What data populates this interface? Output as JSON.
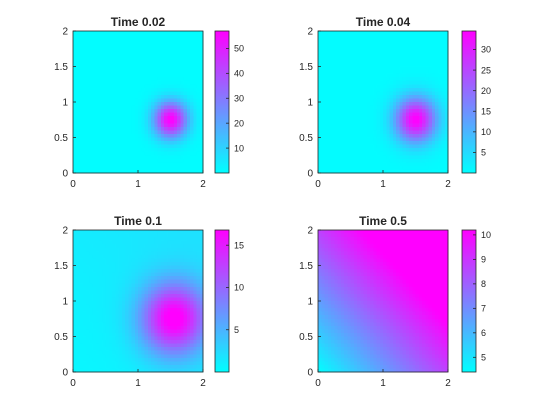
{
  "colormap": {
    "name": "cool",
    "low": "#00ffff",
    "high": "#ff00ff"
  },
  "chart_data": [
    {
      "type": "heatmap",
      "title": "Time 0.02",
      "xlim": [
        0,
        2
      ],
      "ylim": [
        0,
        2
      ],
      "xticks": [
        "0",
        "1",
        "2"
      ],
      "yticks": [
        "0",
        "0.5",
        "1",
        "1.5",
        "2"
      ],
      "field": {
        "kind": "gaussian",
        "center": [
          1.5,
          0.75
        ],
        "width": 0.18,
        "min": 0.4,
        "max": 57,
        "tilt": 0
      },
      "colorbar": {
        "min": 0,
        "max": 57,
        "ticks": [
          10,
          20,
          30,
          40,
          50
        ],
        "tick_labels": [
          "10",
          "20",
          "30",
          "40",
          "50"
        ]
      }
    },
    {
      "type": "heatmap",
      "title": "Time 0.04",
      "xlim": [
        0,
        2
      ],
      "ylim": [
        0,
        2
      ],
      "xticks": [
        "0",
        "1",
        "2"
      ],
      "yticks": [
        "0",
        "0.5",
        "1",
        "1.5",
        "2"
      ],
      "field": {
        "kind": "gaussian",
        "center": [
          1.5,
          0.75
        ],
        "width": 0.22,
        "min": 0.4,
        "max": 34.5,
        "tilt": 0
      },
      "colorbar": {
        "min": 0,
        "max": 34.5,
        "ticks": [
          5,
          10,
          15,
          20,
          25,
          30
        ],
        "tick_labels": [
          "5",
          "10",
          "15",
          "20",
          "25",
          "30"
        ]
      }
    },
    {
      "type": "heatmap",
      "title": "Time 0.1",
      "xlim": [
        0,
        2
      ],
      "ylim": [
        0,
        2
      ],
      "xticks": [
        "0",
        "1",
        "2"
      ],
      "yticks": [
        "0",
        "0.5",
        "1",
        "1.5",
        "2"
      ],
      "field": {
        "kind": "gaussian",
        "center": [
          1.55,
          0.75
        ],
        "width": 0.35,
        "min": 0.5,
        "max": 16.8,
        "tilt": 2.5
      },
      "colorbar": {
        "min": 0,
        "max": 16.8,
        "ticks": [
          5,
          10,
          15
        ],
        "tick_labels": [
          "5",
          "10",
          "15"
        ]
      }
    },
    {
      "type": "heatmap",
      "title": "Time 0.5",
      "xlim": [
        0,
        2
      ],
      "ylim": [
        0,
        2
      ],
      "xticks": [
        "0",
        "1",
        "2"
      ],
      "yticks": [
        "0",
        "0.5",
        "1",
        "1.5",
        "2"
      ],
      "field": {
        "kind": "ramp",
        "low_corner": [
          0,
          0
        ],
        "min": 4.4,
        "max": 10.2
      },
      "colorbar": {
        "min": 4.4,
        "max": 10.2,
        "ticks": [
          5,
          6,
          7,
          8,
          9,
          10
        ],
        "tick_labels": [
          "5",
          "6",
          "7",
          "8",
          "9",
          "10"
        ]
      }
    }
  ]
}
